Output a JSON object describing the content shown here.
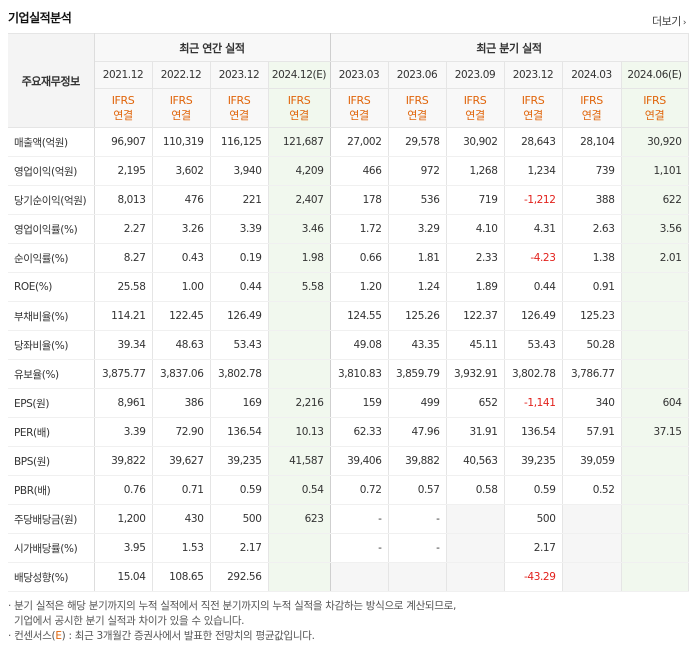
{
  "header": {
    "title": "기업실적분석",
    "more_label": "더보기",
    "more_arrow": "›"
  },
  "table": {
    "corner_label": "주요재무정보",
    "groups": {
      "annual": "최근 연간 실적",
      "quarterly": "최근 분기 실적"
    },
    "periods": [
      "2021.12",
      "2022.12",
      "2023.12",
      "2024.12(E)",
      "2023.03",
      "2023.06",
      "2023.09",
      "2023.12",
      "2024.03",
      "2024.06(E)"
    ],
    "ifrs": "IFRS",
    "basis": "연결",
    "rows": [
      {
        "label": "매출액(억원)",
        "values": [
          "96,907",
          "110,319",
          "116,125",
          "121,687",
          "27,002",
          "29,578",
          "30,902",
          "28,643",
          "28,104",
          "30,920"
        ]
      },
      {
        "label": "영업이익(억원)",
        "values": [
          "2,195",
          "3,602",
          "3,940",
          "4,209",
          "466",
          "972",
          "1,268",
          "1,234",
          "739",
          "1,101"
        ]
      },
      {
        "label": "당기순이익(억원)",
        "values": [
          "8,013",
          "476",
          "221",
          "2,407",
          "178",
          "536",
          "719",
          "-1,212",
          "388",
          "622"
        ]
      },
      {
        "label": "영업이익률(%)",
        "values": [
          "2.27",
          "3.26",
          "3.39",
          "3.46",
          "1.72",
          "3.29",
          "4.10",
          "4.31",
          "2.63",
          "3.56"
        ]
      },
      {
        "label": "순이익률(%)",
        "values": [
          "8.27",
          "0.43",
          "0.19",
          "1.98",
          "0.66",
          "1.81",
          "2.33",
          "-4.23",
          "1.38",
          "2.01"
        ]
      },
      {
        "label": "ROE(%)",
        "values": [
          "25.58",
          "1.00",
          "0.44",
          "5.58",
          "1.20",
          "1.24",
          "1.89",
          "0.44",
          "0.91",
          ""
        ]
      },
      {
        "label": "부채비율(%)",
        "values": [
          "114.21",
          "122.45",
          "126.49",
          "",
          "124.55",
          "125.26",
          "122.37",
          "126.49",
          "125.23",
          ""
        ]
      },
      {
        "label": "당좌비율(%)",
        "values": [
          "39.34",
          "48.63",
          "53.43",
          "",
          "49.08",
          "43.35",
          "45.11",
          "53.43",
          "50.28",
          ""
        ]
      },
      {
        "label": "유보율(%)",
        "values": [
          "3,875.77",
          "3,837.06",
          "3,802.78",
          "",
          "3,810.83",
          "3,859.79",
          "3,932.91",
          "3,802.78",
          "3,786.77",
          ""
        ]
      },
      {
        "label": "EPS(원)",
        "values": [
          "8,961",
          "386",
          "169",
          "2,216",
          "159",
          "499",
          "652",
          "-1,141",
          "340",
          "604"
        ]
      },
      {
        "label": "PER(배)",
        "values": [
          "3.39",
          "72.90",
          "136.54",
          "10.13",
          "62.33",
          "47.96",
          "31.91",
          "136.54",
          "57.91",
          "37.15"
        ]
      },
      {
        "label": "BPS(원)",
        "values": [
          "39,822",
          "39,627",
          "39,235",
          "41,587",
          "39,406",
          "39,882",
          "40,563",
          "39,235",
          "39,059",
          ""
        ]
      },
      {
        "label": "PBR(배)",
        "values": [
          "0.76",
          "0.71",
          "0.59",
          "0.54",
          "0.72",
          "0.57",
          "0.58",
          "0.59",
          "0.52",
          ""
        ]
      },
      {
        "label": "주당배당금(원)",
        "values": [
          "1,200",
          "430",
          "500",
          "623",
          "-",
          "-",
          "",
          "500",
          "",
          ""
        ]
      },
      {
        "label": "시가배당률(%)",
        "values": [
          "3.95",
          "1.53",
          "2.17",
          "",
          "-",
          "-",
          "",
          "2.17",
          "",
          ""
        ]
      },
      {
        "label": "배당성향(%)",
        "values": [
          "15.04",
          "108.65",
          "292.56",
          "",
          "",
          "",
          "",
          "-43.29",
          "",
          ""
        ]
      }
    ]
  },
  "notes": {
    "line1": "· 분기 실적은 해당 분기까지의 누적 실적에서 직전 분기까지의 누적 실적을 차감하는 방식으로 계산되므로,",
    "line2": "  기업에서 공시한 분기 실적과 차이가 있을 수 있습니다.",
    "line3_prefix": "· 컨센서스(",
    "line3_e": "E",
    "line3_suffix": ") : 최근 3개월간 증권사에서 발표한 전망치의 평균값입니다."
  },
  "colors": {
    "estimate_bg": "#f1f8ee",
    "ifrs_orange": "#e0650b",
    "negative_red": "#e2211c"
  }
}
